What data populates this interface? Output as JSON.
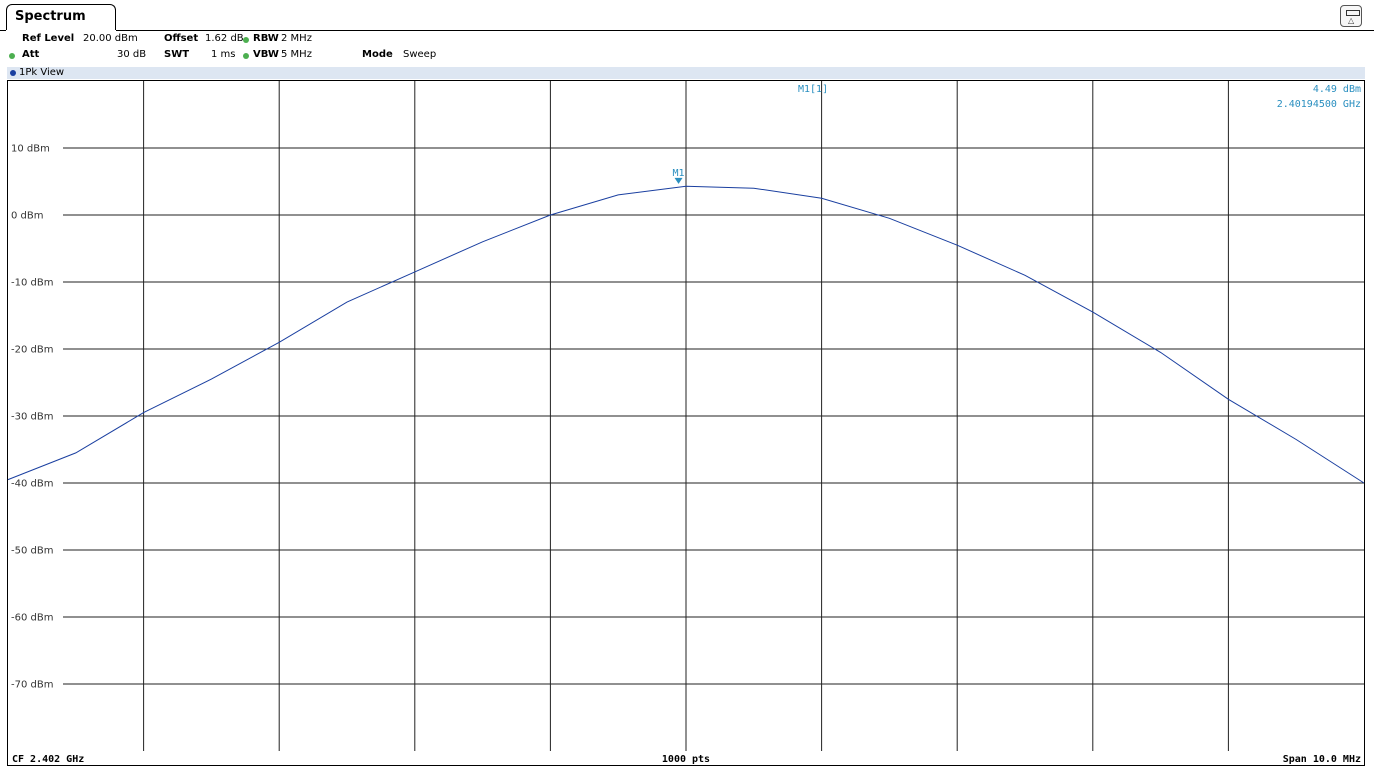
{
  "tab": {
    "title": "Spectrum"
  },
  "settings": {
    "ref_level_label": "Ref Level",
    "ref_level_value": "20.00 dBm",
    "offset_label": "Offset",
    "offset_value": "1.62 dB",
    "rbw_label": "RBW",
    "rbw_value": "2 MHz",
    "att_label": "Att",
    "att_value": "30 dB",
    "swt_label": "SWT",
    "swt_value": "1 ms",
    "vbw_label": "VBW",
    "vbw_value": "5 MHz",
    "mode_label": "Mode",
    "mode_value": "Sweep"
  },
  "view": {
    "label": "1Pk View"
  },
  "marker": {
    "name": "M1",
    "readout_label": "M1[1]",
    "level": "4.49 dBm",
    "frequency": "2.40194500 GHz"
  },
  "footer": {
    "cf": "CF 2.402 GHz",
    "points": "1000 pts",
    "span": "Span 10.0 MHz"
  },
  "colors": {
    "trace": "#1a3fa0",
    "marker": "#2a8fc0",
    "view_bar": "#dde6f2"
  },
  "chart_data": {
    "type": "line",
    "title": "",
    "xlabel": "",
    "ylabel": "",
    "x_unit": "MHz offset from CF",
    "xlim": [
      -5,
      5
    ],
    "ylim": [
      -80,
      20
    ],
    "y_ticks": [
      10,
      0,
      -10,
      -20,
      -30,
      -40,
      -50,
      -60,
      -70
    ],
    "y_tick_labels": [
      "10 dBm",
      "0 dBm",
      "-10 dBm",
      "-20 dBm",
      "-30 dBm",
      "-40 dBm",
      "-50 dBm",
      "-60 dBm",
      "-70 dBm"
    ],
    "x_gridlines": 10,
    "grid": true,
    "series": [
      {
        "x": [
          -5.0,
          -4.5,
          -4.0,
          -3.5,
          -3.0,
          -2.5,
          -2.0,
          -1.5,
          -1.0,
          -0.5,
          0.0,
          0.5,
          1.0,
          1.5,
          2.0,
          2.5,
          3.0,
          3.5,
          4.0,
          4.5,
          5.0
        ],
        "y": [
          -39.5,
          -35.5,
          -29.5,
          -24.5,
          -19.0,
          -13.0,
          -8.5,
          -4.0,
          0.0,
          3.0,
          4.3,
          4.0,
          2.5,
          -0.5,
          -4.5,
          -9.0,
          -14.5,
          -20.5,
          -27.5,
          -33.5,
          -40.0
        ]
      }
    ],
    "marker": {
      "x": -0.055,
      "y": 4.49
    }
  }
}
